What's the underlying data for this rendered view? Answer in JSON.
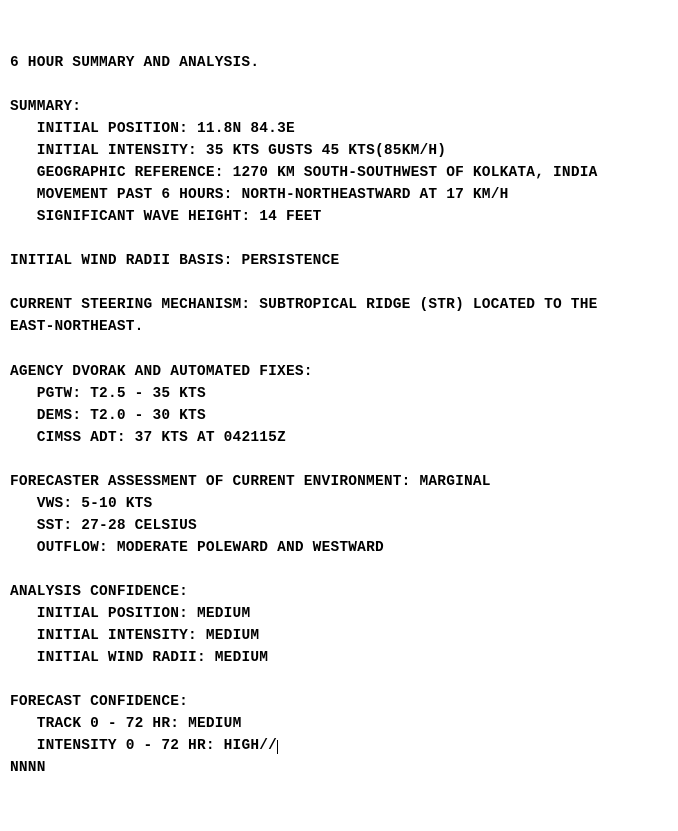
{
  "heading": "6 HOUR SUMMARY AND ANALYSIS.",
  "summary": {
    "label": "SUMMARY:",
    "initial_position": {
      "label": "INITIAL POSITION:",
      "value": "11.8N 84.3E"
    },
    "initial_intensity": {
      "label": "INITIAL INTENSITY:",
      "value": "35 KTS GUSTS 45 KTS(85KM/H)"
    },
    "geographic_reference": {
      "label": "GEOGRAPHIC REFERENCE:",
      "value": "1270 KM SOUTH-SOUTHWEST OF KOLKATA, INDIA"
    },
    "movement_past_6_hours": {
      "label": "MOVEMENT PAST 6 HOURS:",
      "value": "NORTH-NORTHEASTWARD AT 17 KM/H"
    },
    "significant_wave_height": {
      "label": "SIGNIFICANT WAVE HEIGHT:",
      "value": "14 FEET"
    }
  },
  "initial_wind_radii_basis": {
    "label": "INITIAL WIND RADII BASIS:",
    "value": "PERSISTENCE"
  },
  "current_steering_mechanism": {
    "label": "CURRENT STEERING MECHANISM:",
    "value_line1": "SUBTROPICAL RIDGE (STR) LOCATED TO THE",
    "value_line2": "EAST-NORTHEAST."
  },
  "agency_fixes": {
    "label": "AGENCY DVORAK AND AUTOMATED FIXES:",
    "pgtw": {
      "label": "PGTW:",
      "value": "T2.5 - 35 KTS"
    },
    "dems": {
      "label": "DEMS:",
      "value": "T2.0 - 30 KTS"
    },
    "cimss_adt": {
      "label": "CIMSS ADT:",
      "value": "37 KTS AT 042115Z"
    }
  },
  "forecaster_env": {
    "label": "FORECASTER ASSESSMENT OF CURRENT ENVIRONMENT:",
    "value": "MARGINAL",
    "vws": {
      "label": "VWS:",
      "value": "5-10 KTS"
    },
    "sst": {
      "label": "SST:",
      "value": "27-28 CELSIUS"
    },
    "outflow": {
      "label": "OUTFLOW:",
      "value": "MODERATE POLEWARD AND WESTWARD"
    }
  },
  "analysis_confidence": {
    "label": "ANALYSIS CONFIDENCE:",
    "initial_position": {
      "label": "INITIAL POSITION:",
      "value": "MEDIUM"
    },
    "initial_intensity": {
      "label": "INITIAL INTENSITY:",
      "value": "MEDIUM"
    },
    "initial_wind_radii": {
      "label": "INITIAL WIND RADII:",
      "value": "MEDIUM"
    }
  },
  "forecast_confidence": {
    "label": "FORECAST CONFIDENCE:",
    "track": {
      "label": "TRACK 0 - 72 HR:",
      "value": "MEDIUM"
    },
    "intensity": {
      "label": "INTENSITY 0 - 72 HR:",
      "value": "HIGH//"
    }
  },
  "terminator": "NNNN",
  "text_color": "#000000",
  "background_color": "#ffffff",
  "font_weight": "bold",
  "font_family_hint": "monospace",
  "font_size_pt": 11,
  "indent_spaces": 3
}
